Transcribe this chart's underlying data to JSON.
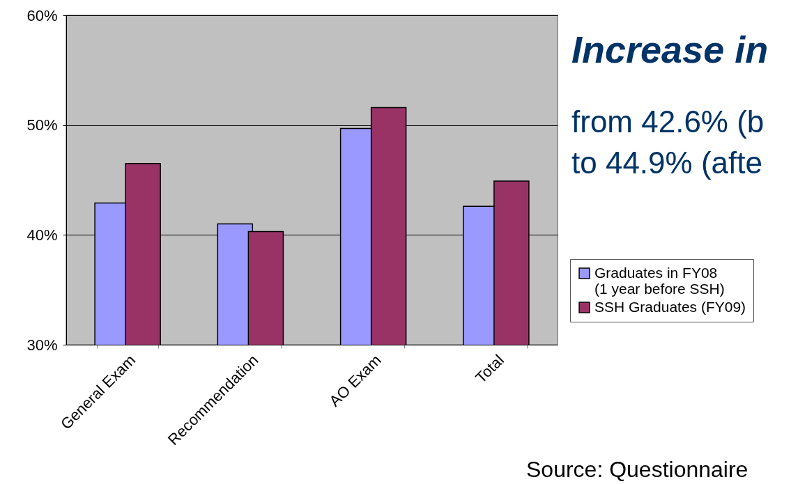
{
  "chart_data": {
    "type": "bar",
    "title": "Increase in",
    "categories": [
      "General Exam",
      "Recommendation",
      "AO Exam",
      "Total"
    ],
    "series": [
      {
        "name": "Graduates in FY08\n(1 year before SSH)",
        "color": "#9999ff",
        "values": [
          42.9,
          41.0,
          49.7,
          42.6
        ]
      },
      {
        "name": "SSH Graduates (FY09)",
        "color": "#993366",
        "values": [
          46.5,
          40.3,
          51.6,
          44.9
        ]
      }
    ],
    "ylim": [
      30,
      60
    ],
    "yticks": [
      {
        "value": 30,
        "label": "30%"
      },
      {
        "value": 40,
        "label": "40%"
      },
      {
        "value": 50,
        "label": "50%"
      },
      {
        "value": 60,
        "label": "60%"
      }
    ],
    "grid": "y",
    "legend": "right",
    "annotations": [
      "from 42.6% (b",
      "to 44.9% (afte",
      "Source: Questionnaire"
    ]
  }
}
